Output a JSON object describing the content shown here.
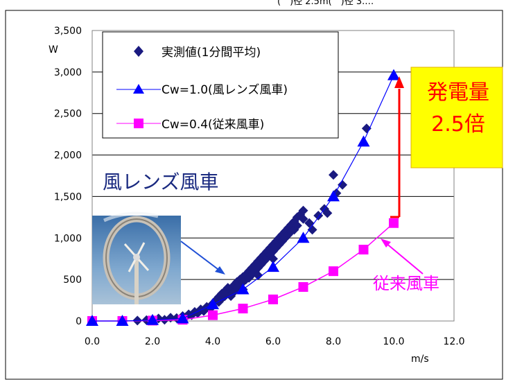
{
  "header_fragment": "(　)径 2.5m(　)径 3.…",
  "callout": {
    "line1": "発電量",
    "line2": "2.5倍"
  },
  "labels": {
    "lens": "風レンズ風車",
    "conventional": "従来風車"
  },
  "colors": {
    "measured": "#1a1a80",
    "lens": "#0000ff",
    "conventional": "#ff00ff",
    "callout_bg": "#ffff00",
    "callout_text": "#ff0000",
    "arrow": "#ff0000",
    "lens_label": "#1a2a80"
  },
  "chart_data": {
    "type": "scatter",
    "title": "",
    "xlabel": "m/s",
    "ylabel": "W",
    "xlim": [
      0,
      12
    ],
    "ylim": [
      0,
      3500
    ],
    "xticks": [
      "0.0",
      "2.0",
      "4.0",
      "6.0",
      "8.0",
      "10.0",
      "12.0"
    ],
    "yticks": [
      "0",
      "500",
      "1,000",
      "1,500",
      "2,000",
      "2,500",
      "3,000",
      "3,500"
    ],
    "grid": "horizontal",
    "legend_position": "top-left",
    "series": [
      {
        "name": "実測値(1分間平均)",
        "marker": "diamond",
        "line": false,
        "points": [
          [
            1.0,
            0
          ],
          [
            1.5,
            5
          ],
          [
            1.8,
            10
          ],
          [
            2.0,
            20
          ],
          [
            2.2,
            30
          ],
          [
            2.4,
            15
          ],
          [
            2.6,
            40
          ],
          [
            2.8,
            35
          ],
          [
            3.0,
            60
          ],
          [
            3.1,
            45
          ],
          [
            3.2,
            80
          ],
          [
            3.3,
            70
          ],
          [
            3.4,
            110
          ],
          [
            3.5,
            95
          ],
          [
            3.6,
            140
          ],
          [
            3.7,
            120
          ],
          [
            3.8,
            170
          ],
          [
            3.9,
            150
          ],
          [
            4.0,
            210
          ],
          [
            4.0,
            180
          ],
          [
            4.1,
            250
          ],
          [
            4.2,
            230
          ],
          [
            4.2,
            290
          ],
          [
            4.3,
            270
          ],
          [
            4.3,
            330
          ],
          [
            4.4,
            300
          ],
          [
            4.4,
            360
          ],
          [
            4.5,
            340
          ],
          [
            4.5,
            400
          ],
          [
            4.6,
            380
          ],
          [
            4.6,
            300
          ],
          [
            4.7,
            430
          ],
          [
            4.7,
            350
          ],
          [
            4.8,
            470
          ],
          [
            4.8,
            400
          ],
          [
            4.9,
            500
          ],
          [
            4.9,
            440
          ],
          [
            5.0,
            530
          ],
          [
            5.0,
            470
          ],
          [
            5.0,
            380
          ],
          [
            5.1,
            560
          ],
          [
            5.1,
            500
          ],
          [
            5.2,
            600
          ],
          [
            5.2,
            520
          ],
          [
            5.3,
            640
          ],
          [
            5.3,
            560
          ],
          [
            5.4,
            680
          ],
          [
            5.4,
            600
          ],
          [
            5.5,
            720
          ],
          [
            5.5,
            640
          ],
          [
            5.5,
            550
          ],
          [
            5.6,
            760
          ],
          [
            5.6,
            680
          ],
          [
            5.7,
            800
          ],
          [
            5.7,
            720
          ],
          [
            5.8,
            840
          ],
          [
            5.8,
            760
          ],
          [
            5.9,
            880
          ],
          [
            5.9,
            800
          ],
          [
            6.0,
            920
          ],
          [
            6.0,
            840
          ],
          [
            6.0,
            750
          ],
          [
            6.1,
            960
          ],
          [
            6.1,
            880
          ],
          [
            6.2,
            1000
          ],
          [
            6.2,
            920
          ],
          [
            6.3,
            1040
          ],
          [
            6.3,
            960
          ],
          [
            6.4,
            1080
          ],
          [
            6.4,
            1000
          ],
          [
            6.5,
            1120
          ],
          [
            6.5,
            1040
          ],
          [
            6.6,
            1160
          ],
          [
            6.6,
            1080
          ],
          [
            6.7,
            1200
          ],
          [
            6.7,
            1100
          ],
          [
            6.8,
            1250
          ],
          [
            6.8,
            1150
          ],
          [
            6.9,
            1280
          ],
          [
            7.0,
            1330
          ],
          [
            7.0,
            1230
          ],
          [
            7.2,
            1180
          ],
          [
            7.3,
            1100
          ],
          [
            7.5,
            1270
          ],
          [
            7.7,
            1350
          ],
          [
            7.8,
            1300
          ],
          [
            8.0,
            1760
          ],
          [
            8.1,
            1540
          ],
          [
            8.3,
            1640
          ],
          [
            9.1,
            2320
          ]
        ]
      },
      {
        "name": "Cw=1.0(風レンズ風車)",
        "marker": "triangle",
        "line": true,
        "x": [
          0,
          1,
          2,
          3,
          4,
          5,
          6,
          7,
          8,
          9,
          10
        ],
        "y": [
          0,
          0,
          10,
          30,
          200,
          380,
          650,
          1000,
          1500,
          2160,
          2960
        ]
      },
      {
        "name": "Cw=0.4(従来風車)",
        "marker": "square",
        "line": true,
        "x": [
          0,
          1,
          2,
          3,
          4,
          5,
          6,
          7,
          8,
          9,
          10
        ],
        "y": [
          0,
          0,
          5,
          15,
          70,
          150,
          260,
          410,
          600,
          860,
          1180
        ]
      }
    ]
  }
}
